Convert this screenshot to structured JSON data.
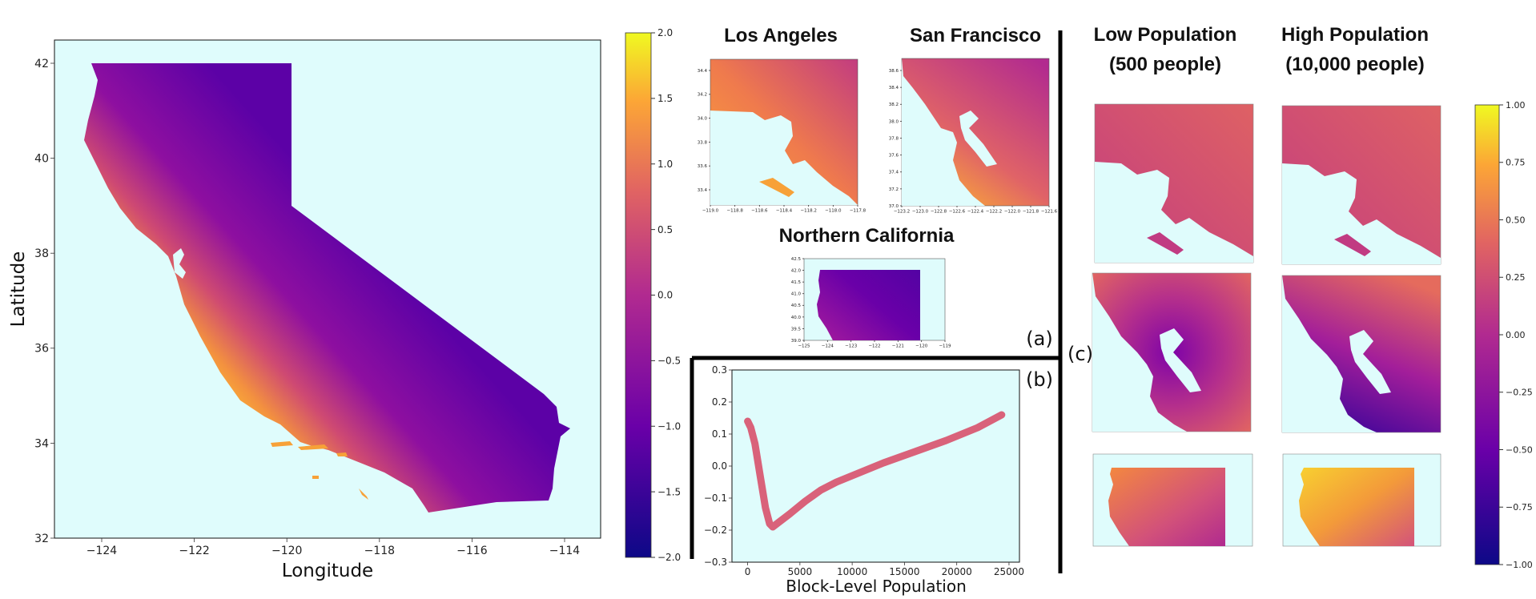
{
  "colors": {
    "background": "#dffcfc",
    "plasma": [
      "#0d0887",
      "#6a00a8",
      "#b12a90",
      "#e16462",
      "#fca636",
      "#f0f921"
    ],
    "line": "#d9627a"
  },
  "main_map": {
    "xlabel": "Longitude",
    "ylabel": "Latitude",
    "xticks": [
      "−124",
      "−122",
      "−120",
      "−118",
      "−116",
      "−114"
    ],
    "yticks": [
      "42",
      "40",
      "38",
      "36",
      "34",
      "32"
    ],
    "xlim": [
      -125,
      -113.5
    ],
    "ylim": [
      32,
      42.5
    ]
  },
  "colorbar_left": {
    "ticks": [
      "2.0",
      "1.5",
      "1.0",
      "0.5",
      "0.0",
      "−0.5",
      "−1.0",
      "−1.5",
      "−2.0"
    ],
    "range": [
      -2.0,
      2.0
    ]
  },
  "panel_a": {
    "label": "(a)",
    "titles": {
      "la": "Los Angeles",
      "sf": "San Francisco",
      "nc": "Northern California"
    },
    "la_xticks": [
      "−119.0",
      "−118.8",
      "−118.6",
      "−118.4",
      "−118.2",
      "−118.0",
      "−117.8"
    ],
    "la_yticks": [
      "34.4",
      "34.2",
      "34.0",
      "33.8",
      "33.6",
      "33.4"
    ],
    "sf_xticks": [
      "−123.2",
      "−123.0",
      "−122.8",
      "−122.6",
      "−122.4",
      "−122.2",
      "−122.0",
      "−121.8",
      "−121.6"
    ],
    "sf_yticks": [
      "38.6",
      "38.4",
      "38.2",
      "38.0",
      "37.8",
      "37.6",
      "37.4",
      "37.2",
      "37.0"
    ],
    "nc_xticks": [
      "−125",
      "−124",
      "−123",
      "−122",
      "−121",
      "−120",
      "−119"
    ],
    "nc_yticks": [
      "42.5",
      "42.0",
      "41.5",
      "41.0",
      "40.5",
      "40.0",
      "39.5",
      "39.0"
    ]
  },
  "panel_c": {
    "label": "(c)",
    "col_titles": [
      [
        "Low Population",
        "(500 people)"
      ],
      [
        "High Population",
        "(10,000 people)"
      ]
    ]
  },
  "colorbar_right": {
    "ticks": [
      "1.00",
      "0.75",
      "0.50",
      "0.25",
      "0.00",
      "−0.25",
      "−0.50",
      "−0.75",
      "−1.00"
    ],
    "range": [
      -1.0,
      1.0
    ]
  },
  "chart_data": {
    "type": "line",
    "label": "(b)",
    "xlabel": "Block-Level Population",
    "ylabel": "",
    "xlim": [
      -1500,
      26000
    ],
    "ylim": [
      -0.3,
      0.3
    ],
    "xticks": [
      "0",
      "5000",
      "10000",
      "15000",
      "20000",
      "25000"
    ],
    "yticks": [
      "0.3",
      "0.2",
      "0.1",
      "0.0",
      "−0.1",
      "−0.2",
      "−0.3"
    ],
    "x": [
      0,
      300,
      700,
      1200,
      1700,
      2100,
      2400,
      3000,
      4000,
      5500,
      7000,
      8500,
      10000,
      13000,
      16000,
      19000,
      22000,
      24300
    ],
    "y": [
      0.14,
      0.12,
      0.07,
      -0.03,
      -0.13,
      -0.18,
      -0.19,
      -0.175,
      -0.15,
      -0.11,
      -0.075,
      -0.05,
      -0.03,
      0.01,
      0.045,
      0.08,
      0.12,
      0.16
    ]
  }
}
